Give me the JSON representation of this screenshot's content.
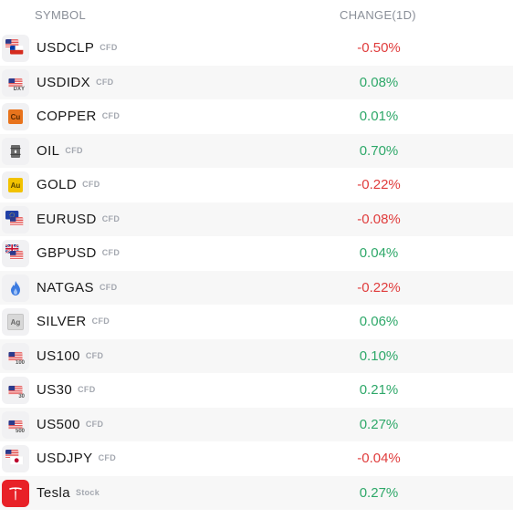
{
  "header": {
    "symbol": "SYMBOL",
    "change": "CHANGE(1D)"
  },
  "rows": [
    {
      "symbol": "USDCLP",
      "type": "CFD",
      "change": "-0.50%",
      "dir": "neg",
      "icon": "usd-clp-flags-icon"
    },
    {
      "symbol": "USDIDX",
      "type": "CFD",
      "change": "0.08%",
      "dir": "pos",
      "icon": "usd-index-flag-icon",
      "icon_sub": "DXY"
    },
    {
      "symbol": "COPPER",
      "type": "CFD",
      "change": "0.01%",
      "dir": "pos",
      "icon": "copper-icon",
      "icon_text": "Cu"
    },
    {
      "symbol": "OIL",
      "type": "CFD",
      "change": "0.70%",
      "dir": "pos",
      "icon": "oil-barrel-icon"
    },
    {
      "symbol": "GOLD",
      "type": "CFD",
      "change": "-0.22%",
      "dir": "neg",
      "icon": "gold-icon",
      "icon_text": "Au"
    },
    {
      "symbol": "EURUSD",
      "type": "CFD",
      "change": "-0.08%",
      "dir": "neg",
      "icon": "eur-usd-flags-icon"
    },
    {
      "symbol": "GBPUSD",
      "type": "CFD",
      "change": "0.04%",
      "dir": "pos",
      "icon": "gbp-usd-flags-icon"
    },
    {
      "symbol": "NATGAS",
      "type": "CFD",
      "change": "-0.22%",
      "dir": "neg",
      "icon": "flame-icon"
    },
    {
      "symbol": "SILVER",
      "type": "CFD",
      "change": "0.06%",
      "dir": "pos",
      "icon": "silver-icon",
      "icon_text": "Ag"
    },
    {
      "symbol": "US100",
      "type": "CFD",
      "change": "0.10%",
      "dir": "pos",
      "icon": "us100-flag-icon",
      "icon_sub": "100"
    },
    {
      "symbol": "US30",
      "type": "CFD",
      "change": "0.21%",
      "dir": "pos",
      "icon": "us30-flag-icon",
      "icon_sub": "30"
    },
    {
      "symbol": "US500",
      "type": "CFD",
      "change": "0.27%",
      "dir": "pos",
      "icon": "us500-flag-icon",
      "icon_sub": "500"
    },
    {
      "symbol": "USDJPY",
      "type": "CFD",
      "change": "-0.04%",
      "dir": "neg",
      "icon": "usd-jpy-flags-icon"
    },
    {
      "symbol": "Tesla",
      "type": "Stock",
      "change": "0.27%",
      "dir": "pos",
      "icon": "tesla-logo-icon"
    }
  ],
  "colors": {
    "positive": "#2ea869",
    "negative": "#e03c3c",
    "copper": "#e8731c",
    "gold": "#f2c200",
    "tesla": "#e82127"
  }
}
